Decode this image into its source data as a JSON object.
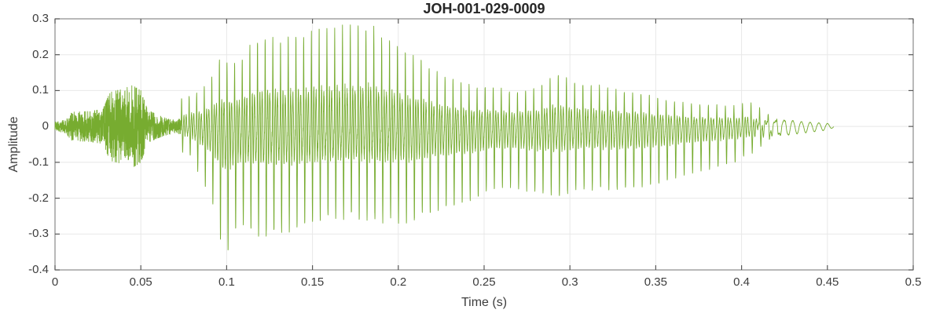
{
  "chart_data": {
    "type": "line",
    "title": "JOH-001-029-0009",
    "xlabel": "Time (s)",
    "ylabel": "Amplitude",
    "xlim": [
      0,
      0.5
    ],
    "ylim": [
      -0.4,
      0.3
    ],
    "grid": true,
    "legend": null,
    "x_ticks": [
      0,
      0.05,
      0.1,
      0.15,
      0.2,
      0.25,
      0.3,
      0.35,
      0.4,
      0.45,
      0.5
    ],
    "x_tick_labels": [
      "0",
      "0.05",
      "0.1",
      "0.15",
      "0.2",
      "0.25",
      "0.3",
      "0.35",
      "0.4",
      "0.45",
      "0.5"
    ],
    "y_ticks": [
      -0.4,
      -0.3,
      -0.2,
      -0.1,
      0,
      0.1,
      0.2,
      0.3
    ],
    "y_tick_labels": [
      "-0.4",
      "-0.3",
      "-0.2",
      "-0.1",
      "0",
      "0.1",
      "0.2",
      "0.3"
    ],
    "style": {
      "line_color": "#77AC30",
      "grid_color": "#E8E8E8",
      "axis_color": "#8A8A8A",
      "tick_color": "#595959",
      "label_color": "#3D3D3D",
      "title_color": "#262626",
      "background": "#FFFFFF"
    },
    "description": "Speech audio waveform: low-level noise 0-0.03 s, unvoiced fricative burst 0.03-0.052 s (~±0.11), quiet 0.052-0.073 s, voiced segment from 0.073 s with pitch ~220 Hz, peak amplitude +0.28 / -0.355 around 0.10-0.19 s, slow decay with secondary hump near 0.295 s, smooth decaying sinusoid tail ending at ~0.454 s",
    "signal": {
      "t_end": 0.4536,
      "voiced_start": 0.0735,
      "tail_start": 0.405,
      "pitch_hz_start": 228,
      "pitch_hz_end": 196,
      "noise_envelope": [
        [
          0.0,
          0.012
        ],
        [
          0.006,
          0.018
        ],
        [
          0.01,
          0.04
        ],
        [
          0.02,
          0.042
        ],
        [
          0.028,
          0.048
        ],
        [
          0.032,
          0.095
        ],
        [
          0.04,
          0.105
        ],
        [
          0.045,
          0.115
        ],
        [
          0.05,
          0.1
        ],
        [
          0.054,
          0.045
        ],
        [
          0.06,
          0.032
        ],
        [
          0.066,
          0.022
        ],
        [
          0.0735,
          0.02
        ]
      ],
      "envelope": [
        [
          0.0735,
          0.08,
          -0.07
        ],
        [
          0.079,
          0.09,
          -0.08
        ],
        [
          0.086,
          0.1,
          -0.15
        ],
        [
          0.092,
          0.14,
          -0.22
        ],
        [
          0.097,
          0.2,
          -0.33
        ],
        [
          0.1,
          0.18,
          -0.355
        ],
        [
          0.106,
          0.175,
          -0.275
        ],
        [
          0.113,
          0.22,
          -0.285
        ],
        [
          0.118,
          0.245,
          -0.3
        ],
        [
          0.124,
          0.252,
          -0.305
        ],
        [
          0.132,
          0.235,
          -0.295
        ],
        [
          0.141,
          0.25,
          -0.275
        ],
        [
          0.15,
          0.26,
          -0.268
        ],
        [
          0.158,
          0.27,
          -0.258
        ],
        [
          0.165,
          0.268,
          -0.25
        ],
        [
          0.172,
          0.277,
          -0.245
        ],
        [
          0.18,
          0.275,
          -0.255
        ],
        [
          0.185,
          0.278,
          -0.265
        ],
        [
          0.19,
          0.25,
          -0.262
        ],
        [
          0.199,
          0.228,
          -0.262
        ],
        [
          0.207,
          0.2,
          -0.268
        ],
        [
          0.214,
          0.185,
          -0.247
        ],
        [
          0.22,
          0.16,
          -0.238
        ],
        [
          0.226,
          0.137,
          -0.23
        ],
        [
          0.235,
          0.125,
          -0.215
        ],
        [
          0.246,
          0.108,
          -0.2
        ],
        [
          0.255,
          0.11,
          -0.172
        ],
        [
          0.267,
          0.093,
          -0.168
        ],
        [
          0.281,
          0.11,
          -0.185
        ],
        [
          0.29,
          0.14,
          -0.19
        ],
        [
          0.296,
          0.142,
          -0.193
        ],
        [
          0.305,
          0.118,
          -0.172
        ],
        [
          0.315,
          0.116,
          -0.173
        ],
        [
          0.329,
          0.1,
          -0.177
        ],
        [
          0.341,
          0.092,
          -0.168
        ],
        [
          0.355,
          0.077,
          -0.153
        ],
        [
          0.367,
          0.064,
          -0.134
        ],
        [
          0.379,
          0.06,
          -0.12
        ],
        [
          0.39,
          0.058,
          -0.108
        ],
        [
          0.397,
          0.056,
          -0.098
        ],
        [
          0.402,
          0.066,
          -0.08
        ],
        [
          0.409,
          0.063,
          -0.073
        ],
        [
          0.42,
          0.031,
          -0.039
        ],
        [
          0.431,
          0.016,
          -0.021
        ],
        [
          0.441,
          0.012,
          -0.015
        ],
        [
          0.45,
          0.009,
          -0.01
        ],
        [
          0.4536,
          0.003,
          -0.003
        ]
      ]
    }
  }
}
